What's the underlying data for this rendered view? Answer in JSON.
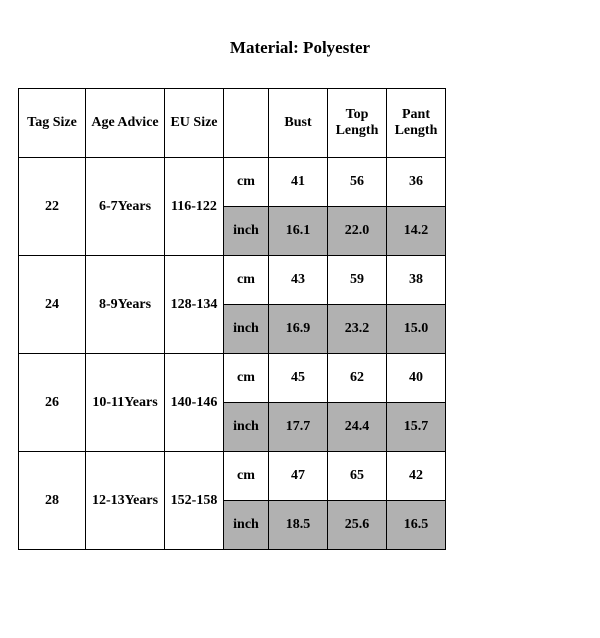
{
  "title": "Material: Polyester",
  "headers": {
    "tag": "Tag Size",
    "age": "Age Advice",
    "eu": "EU Size",
    "blank": "",
    "bust": "Bust",
    "top": "Top Length",
    "pant": "Pant Length"
  },
  "units": {
    "cm": "cm",
    "inch": "inch"
  },
  "rows": [
    {
      "tag": "22",
      "age": "6-7Years",
      "eu": "116-122",
      "cm": {
        "bust": "41",
        "top": "56",
        "pant": "36"
      },
      "inch": {
        "bust": "16.1",
        "top": "22.0",
        "pant": "14.2"
      }
    },
    {
      "tag": "24",
      "age": "8-9Years",
      "eu": "128-134",
      "cm": {
        "bust": "43",
        "top": "59",
        "pant": "38"
      },
      "inch": {
        "bust": "16.9",
        "top": "23.2",
        "pant": "15.0"
      }
    },
    {
      "tag": "26",
      "age": "10-11Years",
      "eu": "140-146",
      "cm": {
        "bust": "45",
        "top": "62",
        "pant": "40"
      },
      "inch": {
        "bust": "17.7",
        "top": "24.4",
        "pant": "15.7"
      }
    },
    {
      "tag": "28",
      "age": "12-13Years",
      "eu": "152-158",
      "cm": {
        "bust": "47",
        "top": "65",
        "pant": "42"
      },
      "inch": {
        "bust": "18.5",
        "top": "25.6",
        "pant": "16.5"
      }
    }
  ],
  "style": {
    "shade_color": "#b1b1b1",
    "background": "#ffffff",
    "border_color": "#000000",
    "title_fontsize": 17,
    "cell_fontsize": 14,
    "header_row_height": 68,
    "data_row_height": 48,
    "col_widths": {
      "tag": 66,
      "age": 78,
      "eu": 58,
      "unit": 44,
      "meas": 58
    }
  }
}
